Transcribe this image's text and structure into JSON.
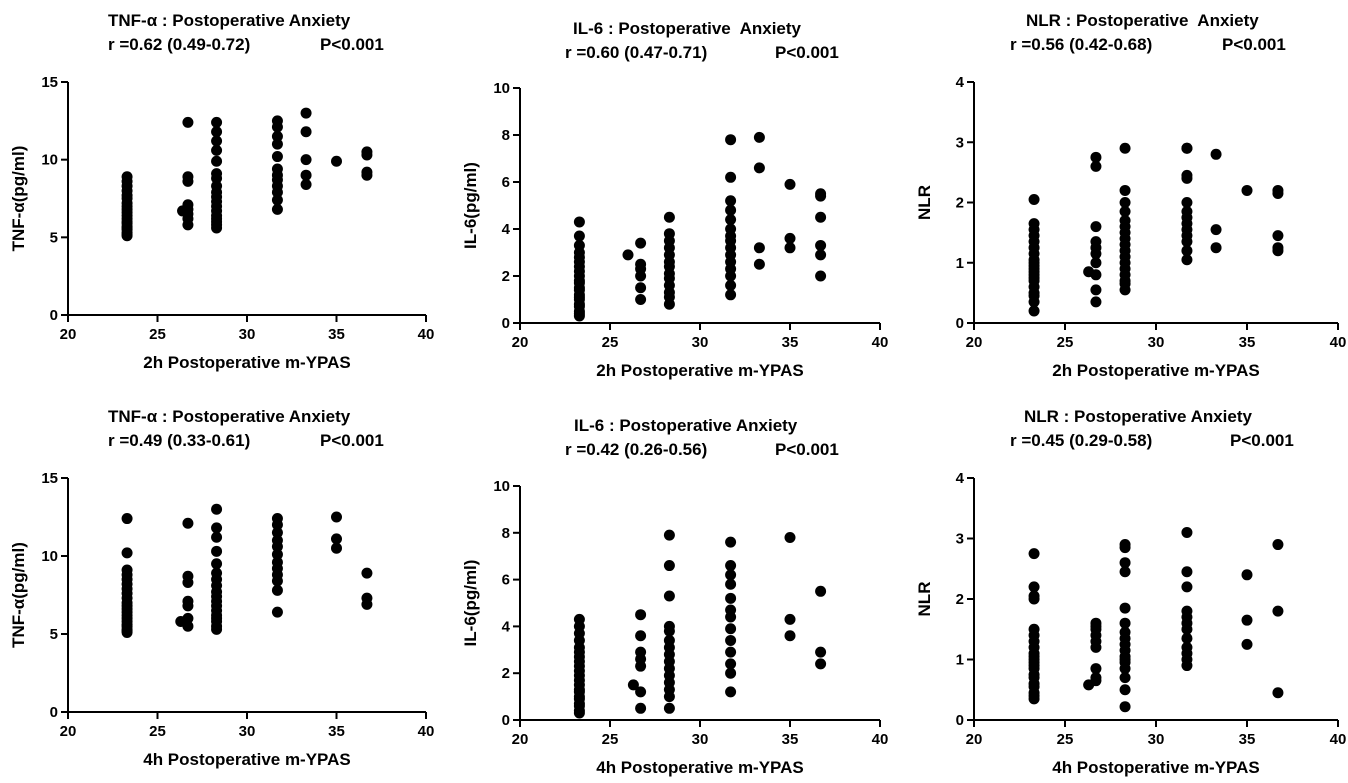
{
  "chart_data": [
    {
      "type": "scatter",
      "title": "TNF-α : Postoperative Anxiety",
      "subtitle_r": "r =0.62 (0.49-0.72)",
      "subtitle_p": "P<0.001",
      "xlabel": "2h Postoperative m-YPAS",
      "ylabel": "TNF-α(pg/ml)",
      "xlim": [
        20,
        40
      ],
      "ylim": [
        0,
        15
      ],
      "xticks": [
        "20",
        "25",
        "30",
        "35",
        "40"
      ],
      "yticks": [
        "0",
        "5",
        "10",
        "15"
      ],
      "series": [
        {
          "x": [
            23.3,
            23.3,
            23.3,
            23.3,
            23.3,
            23.3,
            23.3,
            23.3,
            23.3,
            23.3,
            23.3,
            23.3,
            23.3,
            23.3,
            23.3,
            23.3,
            23.3,
            23.3,
            23.3,
            23.3,
            26.4,
            26.7,
            26.7,
            26.7,
            26.7,
            26.7,
            26.7,
            26.7,
            26.7,
            28.3,
            28.3,
            28.3,
            28.3,
            28.3,
            28.3,
            28.3,
            28.3,
            28.3,
            28.3,
            28.3,
            28.3,
            28.3,
            28.3,
            28.3,
            28.3,
            28.3,
            28.3,
            31.7,
            31.7,
            31.7,
            31.7,
            31.7,
            31.7,
            31.7,
            31.7,
            31.7,
            31.7,
            31.7,
            31.7,
            33.3,
            33.3,
            33.3,
            33.3,
            33.3,
            35.0,
            36.7,
            36.7,
            36.7,
            36.7
          ],
          "y": [
            8.9,
            8.6,
            8.3,
            8.0,
            7.7,
            7.5,
            7.2,
            7.0,
            6.8,
            6.6,
            6.4,
            6.2,
            6.0,
            5.9,
            5.7,
            5.6,
            5.5,
            5.3,
            5.2,
            5.1,
            6.7,
            12.4,
            8.9,
            8.6,
            7.1,
            6.8,
            6.5,
            6.2,
            5.8,
            12.4,
            11.8,
            11.2,
            10.6,
            9.9,
            9.1,
            8.8,
            8.3,
            7.9,
            7.6,
            7.3,
            7.0,
            6.7,
            6.4,
            6.2,
            6.0,
            5.8,
            5.6,
            12.5,
            12.1,
            11.5,
            11.0,
            10.2,
            9.4,
            9.0,
            8.7,
            8.3,
            7.9,
            7.4,
            6.8,
            13.0,
            11.8,
            10.0,
            9.0,
            8.4,
            9.9,
            10.5,
            10.3,
            9.2,
            9.0
          ]
        }
      ]
    },
    {
      "type": "scatter",
      "title": "IL-6 : Postoperative  Anxiety",
      "subtitle_r": "r =0.60 (0.47-0.71)",
      "subtitle_p": "P<0.001",
      "xlabel": "2h Postoperative m-YPAS",
      "ylabel": "IL-6(pg/ml)",
      "xlim": [
        20,
        40
      ],
      "ylim": [
        0,
        10
      ],
      "xticks": [
        "20",
        "25",
        "30",
        "35",
        "40"
      ],
      "yticks": [
        "0",
        "2",
        "4",
        "6",
        "8",
        "10"
      ],
      "series": [
        {
          "x": [
            23.3,
            23.3,
            23.3,
            23.3,
            23.3,
            23.3,
            23.3,
            23.3,
            23.3,
            23.3,
            23.3,
            23.3,
            23.3,
            23.3,
            23.3,
            23.3,
            23.3,
            23.3,
            23.3,
            23.3,
            23.3,
            26.0,
            26.7,
            26.7,
            26.7,
            26.7,
            26.7,
            26.7,
            28.3,
            28.3,
            28.3,
            28.3,
            28.3,
            28.3,
            28.3,
            28.3,
            28.3,
            28.3,
            28.3,
            28.3,
            28.3,
            31.7,
            31.7,
            31.7,
            31.7,
            31.7,
            31.7,
            31.7,
            31.7,
            31.7,
            31.7,
            31.7,
            31.7,
            31.7,
            31.7,
            31.7,
            33.3,
            33.3,
            33.3,
            33.3,
            35.0,
            35.0,
            35.0,
            36.7,
            36.7,
            36.7,
            36.7,
            36.7,
            36.7
          ],
          "y": [
            4.3,
            3.7,
            3.3,
            3.0,
            2.8,
            2.6,
            2.4,
            2.2,
            2.0,
            1.8,
            1.7,
            1.5,
            1.4,
            1.2,
            1.1,
            1.0,
            0.8,
            0.7,
            0.5,
            0.4,
            0.3,
            2.9,
            3.4,
            2.5,
            2.3,
            2.0,
            1.5,
            1.0,
            4.5,
            3.8,
            3.5,
            3.2,
            2.9,
            2.6,
            2.4,
            2.1,
            1.9,
            1.6,
            1.3,
            1.1,
            0.8,
            7.8,
            6.2,
            5.2,
            4.8,
            4.4,
            4.0,
            3.7,
            3.5,
            3.2,
            2.9,
            2.6,
            2.3,
            2.0,
            1.6,
            1.2,
            7.9,
            6.6,
            3.2,
            2.5,
            5.9,
            3.6,
            3.2,
            5.5,
            5.4,
            4.5,
            3.3,
            2.9,
            2.0
          ]
        }
      ]
    },
    {
      "type": "scatter",
      "title": "NLR : Postoperative  Anxiety",
      "subtitle_r": "r =0.56 (0.42-0.68)",
      "subtitle_p": "P<0.001",
      "xlabel": "2h Postoperative m-YPAS",
      "ylabel": "NLR",
      "xlim": [
        20,
        40
      ],
      "ylim": [
        0,
        4
      ],
      "xticks": [
        "20",
        "25",
        "30",
        "35",
        "40"
      ],
      "yticks": [
        "0",
        "1",
        "2",
        "3",
        "4"
      ],
      "series": [
        {
          "x": [
            23.3,
            23.3,
            23.3,
            23.3,
            23.3,
            23.3,
            23.3,
            23.3,
            23.3,
            23.3,
            23.3,
            23.3,
            23.3,
            23.3,
            23.3,
            23.3,
            23.3,
            23.3,
            23.3,
            23.3,
            26.3,
            26.7,
            26.7,
            26.7,
            26.7,
            26.7,
            26.7,
            26.7,
            26.7,
            26.7,
            26.7,
            28.3,
            28.3,
            28.3,
            28.3,
            28.3,
            28.3,
            28.3,
            28.3,
            28.3,
            28.3,
            28.3,
            28.3,
            28.3,
            28.3,
            28.3,
            28.3,
            28.3,
            31.7,
            31.7,
            31.7,
            31.7,
            31.7,
            31.7,
            31.7,
            31.7,
            31.7,
            31.7,
            31.7,
            31.7,
            31.7,
            33.3,
            33.3,
            33.3,
            35.0,
            36.7,
            36.7,
            36.7,
            36.7,
            36.7
          ],
          "y": [
            2.05,
            1.65,
            1.55,
            1.45,
            1.35,
            1.25,
            1.15,
            1.05,
            1.0,
            0.95,
            0.9,
            0.85,
            0.8,
            0.75,
            0.7,
            0.6,
            0.5,
            0.45,
            0.35,
            0.2,
            0.85,
            2.75,
            2.6,
            1.6,
            1.35,
            1.25,
            1.15,
            1.0,
            0.8,
            0.55,
            0.35,
            2.9,
            2.2,
            2.0,
            1.85,
            1.7,
            1.6,
            1.5,
            1.4,
            1.3,
            1.2,
            1.1,
            1.0,
            0.9,
            0.8,
            0.7,
            0.65,
            0.55,
            2.9,
            2.9,
            2.45,
            2.4,
            2.0,
            1.85,
            1.75,
            1.65,
            1.55,
            1.45,
            1.35,
            1.2,
            1.05,
            2.8,
            1.55,
            1.25,
            2.2,
            2.2,
            2.15,
            1.45,
            1.25,
            1.2
          ]
        }
      ]
    },
    {
      "type": "scatter",
      "title": "TNF-α : Postoperative Anxiety",
      "subtitle_r": "r =0.49 (0.33-0.61)",
      "subtitle_p": "P<0.001",
      "xlabel": "4h Postoperative m-YPAS",
      "ylabel": "TNF-α(pg/ml)",
      "xlim": [
        20,
        40
      ],
      "ylim": [
        0,
        15
      ],
      "xticks": [
        "20",
        "25",
        "30",
        "35",
        "40"
      ],
      "yticks": [
        "0",
        "5",
        "10",
        "15"
      ],
      "series": [
        {
          "x": [
            23.3,
            23.3,
            23.3,
            23.3,
            23.3,
            23.3,
            23.3,
            23.3,
            23.3,
            23.3,
            23.3,
            23.3,
            23.3,
            23.3,
            23.3,
            23.3,
            23.3,
            23.3,
            23.3,
            23.3,
            23.3,
            26.3,
            26.7,
            26.7,
            26.7,
            26.7,
            26.7,
            26.7,
            26.7,
            28.3,
            28.3,
            28.3,
            28.3,
            28.3,
            28.3,
            28.3,
            28.3,
            28.3,
            28.3,
            28.3,
            28.3,
            28.3,
            28.3,
            28.3,
            28.3,
            28.3,
            28.3,
            31.7,
            31.7,
            31.7,
            31.7,
            31.7,
            31.7,
            31.7,
            31.7,
            31.7,
            31.7,
            31.7,
            31.7,
            35.0,
            35.0,
            35.0,
            36.7,
            36.7,
            36.7
          ],
          "y": [
            12.4,
            10.2,
            9.1,
            8.8,
            8.5,
            8.2,
            7.9,
            7.6,
            7.3,
            7.0,
            6.8,
            6.6,
            6.4,
            6.2,
            6.0,
            5.8,
            5.6,
            5.5,
            5.3,
            5.2,
            5.1,
            5.8,
            12.1,
            8.7,
            8.3,
            7.1,
            6.8,
            6.0,
            5.5,
            13.0,
            11.8,
            11.2,
            10.3,
            9.5,
            8.9,
            8.5,
            8.1,
            7.7,
            7.4,
            7.1,
            6.8,
            6.5,
            6.2,
            6.0,
            5.8,
            5.5,
            5.3,
            12.4,
            12.0,
            11.5,
            11.0,
            10.6,
            10.1,
            9.6,
            9.2,
            8.8,
            8.4,
            7.8,
            6.4,
            12.5,
            11.1,
            10.5,
            8.9,
            7.3,
            6.9
          ]
        }
      ]
    },
    {
      "type": "scatter",
      "title": "IL-6 : Postoperative Anxiety",
      "subtitle_r": "r =0.42 (0.26-0.56)",
      "subtitle_p": "P<0.001",
      "xlabel": "4h Postoperative m-YPAS",
      "ylabel": "IL-6(pg/ml)",
      "xlim": [
        20,
        40
      ],
      "ylim": [
        0,
        10
      ],
      "xticks": [
        "20",
        "25",
        "30",
        "35",
        "40"
      ],
      "yticks": [
        "0",
        "2",
        "4",
        "6",
        "8",
        "10"
      ],
      "series": [
        {
          "x": [
            23.3,
            23.3,
            23.3,
            23.3,
            23.3,
            23.3,
            23.3,
            23.3,
            23.3,
            23.3,
            23.3,
            23.3,
            23.3,
            23.3,
            23.3,
            23.3,
            23.3,
            23.3,
            23.3,
            23.3,
            23.3,
            26.3,
            26.7,
            26.7,
            26.7,
            26.7,
            26.7,
            26.7,
            26.7,
            28.3,
            28.3,
            28.3,
            28.3,
            28.3,
            28.3,
            28.3,
            28.3,
            28.3,
            28.3,
            28.3,
            28.3,
            28.3,
            28.3,
            28.3,
            31.7,
            31.7,
            31.7,
            31.7,
            31.7,
            31.7,
            31.7,
            31.7,
            31.7,
            31.7,
            31.7,
            31.7,
            31.7,
            35.0,
            35.0,
            35.0,
            36.7,
            36.7,
            36.7
          ],
          "y": [
            4.3,
            4.0,
            3.7,
            3.4,
            3.1,
            2.9,
            2.7,
            2.5,
            2.3,
            2.1,
            1.9,
            1.7,
            1.5,
            1.3,
            1.2,
            1.0,
            0.9,
            0.7,
            0.6,
            0.4,
            0.3,
            1.5,
            4.5,
            3.6,
            2.9,
            2.6,
            2.3,
            1.2,
            0.5,
            7.9,
            6.6,
            5.3,
            4.0,
            3.8,
            3.4,
            3.1,
            2.8,
            2.5,
            2.2,
            1.9,
            1.6,
            1.3,
            1.0,
            0.5,
            7.6,
            6.6,
            6.2,
            5.8,
            5.2,
            4.7,
            4.4,
            3.9,
            3.4,
            2.9,
            2.4,
            2.0,
            1.2,
            7.8,
            4.3,
            3.6,
            5.5,
            2.9,
            2.4
          ]
        }
      ]
    },
    {
      "type": "scatter",
      "title": "NLR : Postoperative Anxiety",
      "subtitle_r": "r =0.45 (0.29-0.58)",
      "subtitle_p": "P<0.001",
      "xlabel": "4h Postoperative m-YPAS",
      "ylabel": "NLR",
      "xlim": [
        20,
        40
      ],
      "ylim": [
        0,
        4
      ],
      "xticks": [
        "20",
        "25",
        "30",
        "35",
        "40"
      ],
      "yticks": [
        "0",
        "1",
        "2",
        "3",
        "4"
      ],
      "series": [
        {
          "x": [
            23.3,
            23.3,
            23.3,
            23.3,
            23.3,
            23.3,
            23.3,
            23.3,
            23.3,
            23.3,
            23.3,
            23.3,
            23.3,
            23.3,
            23.3,
            23.3,
            23.3,
            23.3,
            23.3,
            23.3,
            23.3,
            26.3,
            26.7,
            26.7,
            26.7,
            26.7,
            26.7,
            26.7,
            26.7,
            26.7,
            26.7,
            28.3,
            28.3,
            28.3,
            28.3,
            28.3,
            28.3,
            28.3,
            28.3,
            28.3,
            28.3,
            28.3,
            28.3,
            28.3,
            28.3,
            28.3,
            28.3,
            28.3,
            31.7,
            31.7,
            31.7,
            31.7,
            31.7,
            31.7,
            31.7,
            31.7,
            31.7,
            31.7,
            31.7,
            31.7,
            35.0,
            35.0,
            35.0,
            36.7,
            36.7,
            36.7
          ],
          "y": [
            2.75,
            2.2,
            2.05,
            2.0,
            1.5,
            1.4,
            1.3,
            1.2,
            1.1,
            1.05,
            1.0,
            0.95,
            0.9,
            0.85,
            0.75,
            0.7,
            0.6,
            0.55,
            0.45,
            0.4,
            0.35,
            0.58,
            1.6,
            1.55,
            1.5,
            1.4,
            1.3,
            1.2,
            0.85,
            0.7,
            0.65,
            2.9,
            2.85,
            2.6,
            2.45,
            1.85,
            1.6,
            1.45,
            1.35,
            1.25,
            1.15,
            1.05,
            1.0,
            0.95,
            0.85,
            0.7,
            0.5,
            0.22,
            3.1,
            2.45,
            2.2,
            1.8,
            1.7,
            1.6,
            1.5,
            1.35,
            1.2,
            1.1,
            1.0,
            0.9,
            2.4,
            1.65,
            1.25,
            2.9,
            1.8,
            0.45
          ]
        }
      ]
    }
  ]
}
